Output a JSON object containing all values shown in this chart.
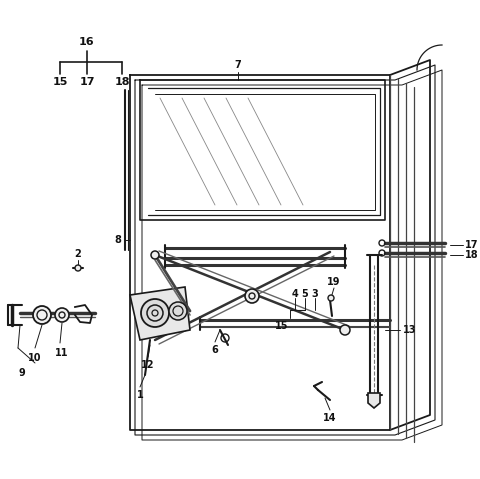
{
  "bg_color": "#ffffff",
  "line_color": "#1a1a1a",
  "figsize": [
    4.8,
    4.79
  ],
  "dpi": 100
}
